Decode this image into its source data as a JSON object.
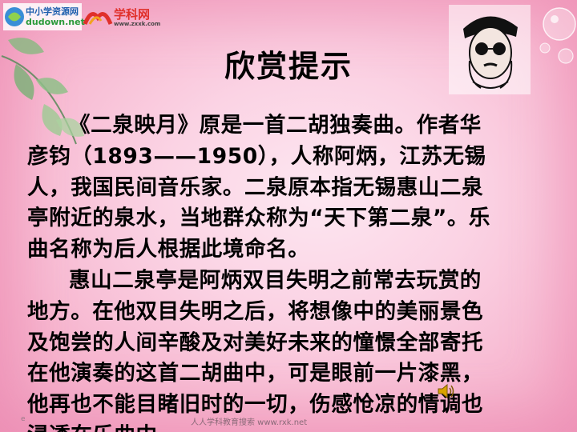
{
  "logos": {
    "site1_name": "中小学资源网",
    "site1_url": "dudown.net",
    "site2_name": "学科网",
    "site2_url": "www.zxxk.com"
  },
  "title": "欣赏提示",
  "body": {
    "lines": [
      "《二泉映月》原是一首二胡独奏曲。作者华",
      "彦钧（1893——1950），人称阿炳，江苏无锡",
      "人，我国民间音乐家。二泉原本指无锡惠山二泉",
      "亭附近的泉水，当地群众称为“天下第二泉”。乐",
      "曲名称为后人根据此境命名。",
      "惠山二泉亭是阿炳双目失明之前常去玩赏的",
      "地方。在他双目失明之后，将想像中的美丽景色",
      "及饱尝的人间辛酸及对美好未来的憧憬全部寄托",
      "在他演奏的这首二胡曲中，可是眼前一片漆黑，",
      "他再也不能目睹旧时的一切，伤感怆凉的情调也",
      "浸透在乐曲中。"
    ]
  },
  "footer": {
    "text": "人人学科教育搜索 www.rxk.net",
    "mark": "e"
  },
  "colors": {
    "background": "#fbd3e4",
    "border": "#f0a2c2",
    "text": "#000000"
  },
  "icons": [
    "leaf-icon",
    "portrait-icon",
    "speaker-icon",
    "bubble-icon"
  ]
}
